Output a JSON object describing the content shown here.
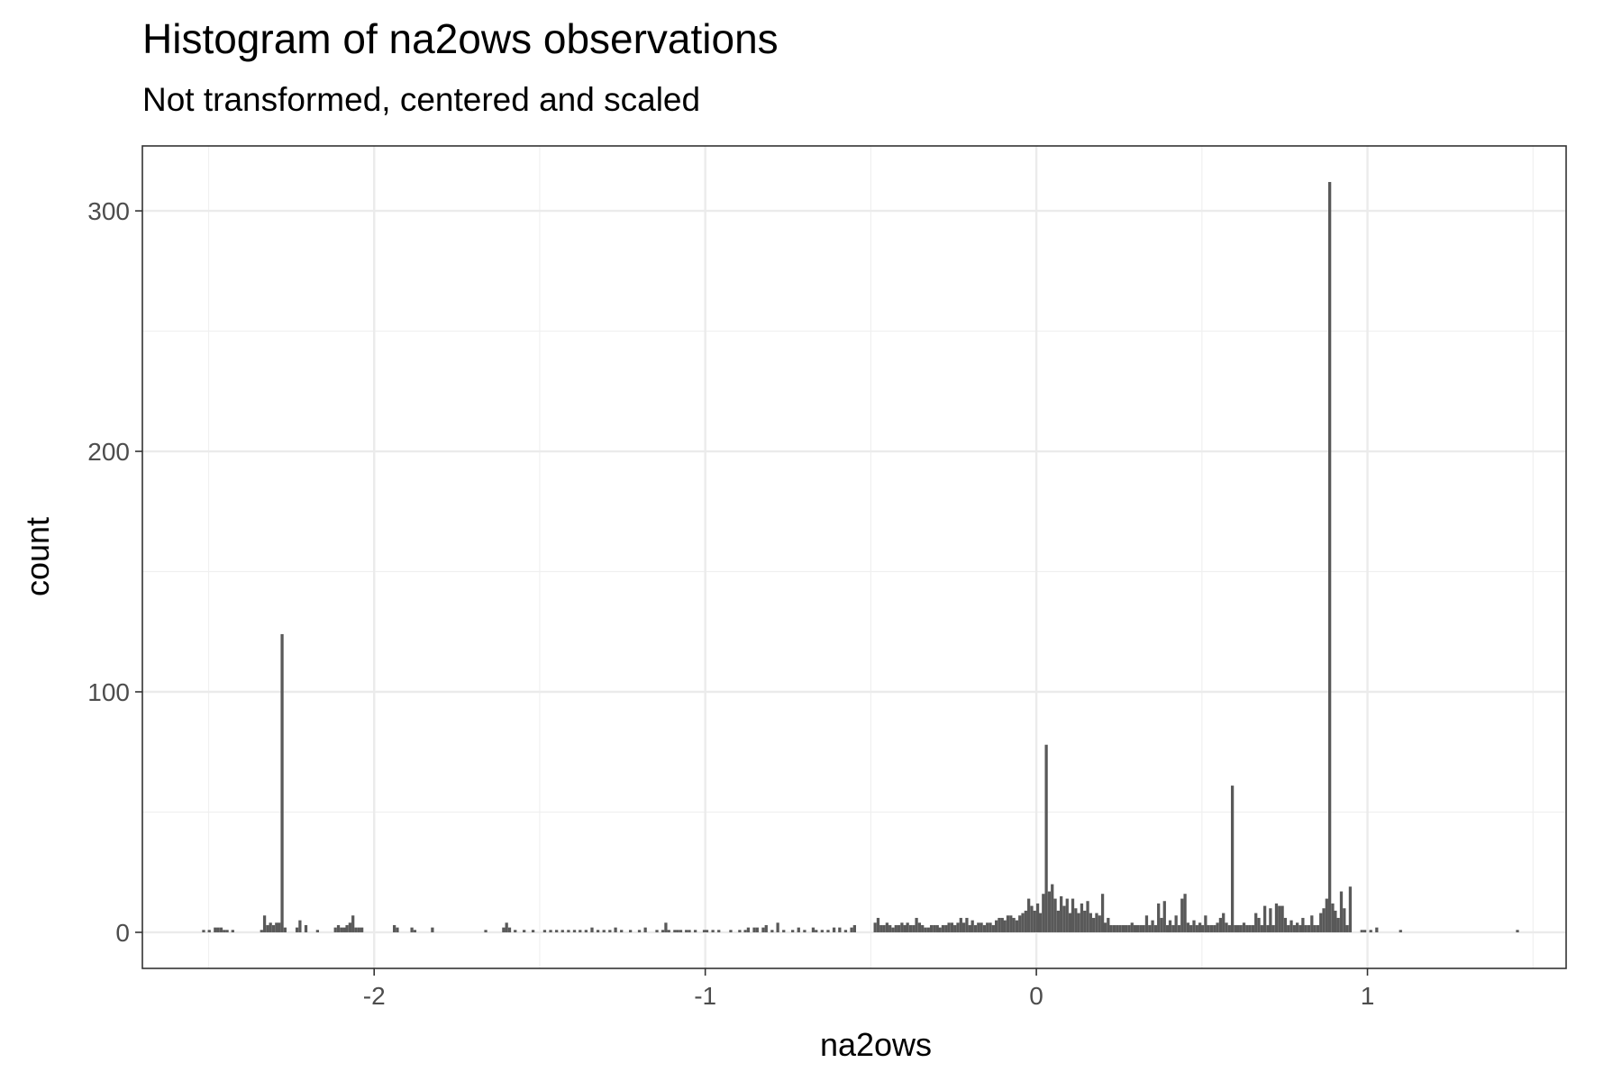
{
  "chart_data": {
    "type": "bar",
    "title": "Histogram of na2ows observations",
    "subtitle": "Not transformed, centered and scaled",
    "xlabel": "na2ows",
    "ylabel": "count",
    "xlim": [
      -2.7,
      1.6
    ],
    "ylim": [
      -15,
      327
    ],
    "x_ticks": [
      -2,
      -1,
      0,
      1
    ],
    "x_tick_labels": [
      "-2",
      "-1",
      "0",
      "1"
    ],
    "y_ticks": [
      0,
      100,
      200,
      300
    ],
    "y_tick_labels": [
      "0",
      "100",
      "200",
      "300"
    ],
    "grid": true,
    "bar_color": "#595959",
    "bin_width": 0.0089,
    "bins": [
      [
        -2.515,
        1
      ],
      [
        -2.498,
        1
      ],
      [
        -2.48,
        2
      ],
      [
        -2.471,
        2
      ],
      [
        -2.462,
        2
      ],
      [
        -2.453,
        1
      ],
      [
        -2.444,
        1
      ],
      [
        -2.427,
        1
      ],
      [
        -2.34,
        1
      ],
      [
        -2.331,
        7
      ],
      [
        -2.322,
        3
      ],
      [
        -2.313,
        4
      ],
      [
        -2.304,
        3
      ],
      [
        -2.295,
        4
      ],
      [
        -2.287,
        4
      ],
      [
        -2.278,
        124
      ],
      [
        -2.269,
        2
      ],
      [
        -2.233,
        2
      ],
      [
        -2.224,
        5
      ],
      [
        -2.206,
        3
      ],
      [
        -2.171,
        1
      ],
      [
        -2.117,
        2
      ],
      [
        -2.108,
        3
      ],
      [
        -2.099,
        2
      ],
      [
        -2.09,
        2
      ],
      [
        -2.082,
        3
      ],
      [
        -2.073,
        4
      ],
      [
        -2.064,
        7
      ],
      [
        -2.055,
        2
      ],
      [
        -2.046,
        2
      ],
      [
        -2.037,
        2
      ],
      [
        -1.939,
        3
      ],
      [
        -1.93,
        2
      ],
      [
        -1.886,
        2
      ],
      [
        -1.877,
        1
      ],
      [
        -1.824,
        2
      ],
      [
        -1.663,
        1
      ],
      [
        -1.609,
        2
      ],
      [
        -1.6,
        4
      ],
      [
        -1.591,
        2
      ],
      [
        -1.574,
        1
      ],
      [
        -1.547,
        1
      ],
      [
        -1.52,
        1
      ],
      [
        -1.485,
        1
      ],
      [
        -1.467,
        1
      ],
      [
        -1.449,
        1
      ],
      [
        -1.431,
        1
      ],
      [
        -1.413,
        1
      ],
      [
        -1.395,
        1
      ],
      [
        -1.378,
        1
      ],
      [
        -1.36,
        1
      ],
      [
        -1.342,
        2
      ],
      [
        -1.324,
        1
      ],
      [
        -1.306,
        1
      ],
      [
        -1.288,
        1
      ],
      [
        -1.271,
        2
      ],
      [
        -1.253,
        1
      ],
      [
        -1.226,
        1
      ],
      [
        -1.199,
        1
      ],
      [
        -1.181,
        2
      ],
      [
        -1.146,
        1
      ],
      [
        -1.128,
        1
      ],
      [
        -1.119,
        4
      ],
      [
        -1.11,
        1
      ],
      [
        -1.092,
        1
      ],
      [
        -1.083,
        1
      ],
      [
        -1.074,
        1
      ],
      [
        -1.057,
        1
      ],
      [
        -1.048,
        1
      ],
      [
        -1.03,
        1
      ],
      [
        -1.003,
        1
      ],
      [
        -0.995,
        1
      ],
      [
        -0.977,
        1
      ],
      [
        -0.959,
        1
      ],
      [
        -0.923,
        1
      ],
      [
        -0.896,
        1
      ],
      [
        -0.879,
        1
      ],
      [
        -0.87,
        2
      ],
      [
        -0.852,
        2
      ],
      [
        -0.843,
        2
      ],
      [
        -0.825,
        2
      ],
      [
        -0.816,
        3
      ],
      [
        -0.798,
        1
      ],
      [
        -0.781,
        4
      ],
      [
        -0.763,
        1
      ],
      [
        -0.736,
        1
      ],
      [
        -0.718,
        2
      ],
      [
        -0.7,
        1
      ],
      [
        -0.674,
        2
      ],
      [
        -0.665,
        1
      ],
      [
        -0.647,
        1
      ],
      [
        -0.629,
        1
      ],
      [
        -0.611,
        2
      ],
      [
        -0.594,
        2
      ],
      [
        -0.576,
        1
      ],
      [
        -0.558,
        2
      ],
      [
        -0.549,
        3
      ],
      [
        -0.487,
        4
      ],
      [
        -0.478,
        6
      ],
      [
        -0.469,
        3
      ],
      [
        -0.46,
        3
      ],
      [
        -0.451,
        4
      ],
      [
        -0.442,
        3
      ],
      [
        -0.433,
        2
      ],
      [
        -0.424,
        3
      ],
      [
        -0.415,
        3
      ],
      [
        -0.406,
        4
      ],
      [
        -0.397,
        3
      ],
      [
        -0.389,
        4
      ],
      [
        -0.38,
        3
      ],
      [
        -0.371,
        3
      ],
      [
        -0.362,
        6
      ],
      [
        -0.353,
        4
      ],
      [
        -0.344,
        3
      ],
      [
        -0.335,
        2
      ],
      [
        -0.326,
        2
      ],
      [
        -0.317,
        3
      ],
      [
        -0.308,
        3
      ],
      [
        -0.299,
        3
      ],
      [
        -0.291,
        2
      ],
      [
        -0.282,
        3
      ],
      [
        -0.273,
        3
      ],
      [
        -0.264,
        4
      ],
      [
        -0.255,
        4
      ],
      [
        -0.246,
        3
      ],
      [
        -0.237,
        4
      ],
      [
        -0.228,
        6
      ],
      [
        -0.219,
        4
      ],
      [
        -0.21,
        6
      ],
      [
        -0.201,
        3
      ],
      [
        -0.193,
        5
      ],
      [
        -0.184,
        3
      ],
      [
        -0.175,
        4
      ],
      [
        -0.166,
        4
      ],
      [
        -0.157,
        3
      ],
      [
        -0.148,
        4
      ],
      [
        -0.139,
        4
      ],
      [
        -0.13,
        3
      ],
      [
        -0.121,
        5
      ],
      [
        -0.112,
        6
      ],
      [
        -0.103,
        6
      ],
      [
        -0.095,
        5
      ],
      [
        -0.086,
        7
      ],
      [
        -0.077,
        7
      ],
      [
        -0.068,
        6
      ],
      [
        -0.059,
        5
      ],
      [
        -0.05,
        7
      ],
      [
        -0.041,
        8
      ],
      [
        -0.032,
        9
      ],
      [
        -0.023,
        14
      ],
      [
        -0.014,
        11
      ],
      [
        -0.005,
        9
      ],
      [
        0.004,
        12
      ],
      [
        0.012,
        8
      ],
      [
        0.021,
        16
      ],
      [
        0.03,
        78
      ],
      [
        0.039,
        17
      ],
      [
        0.048,
        20
      ],
      [
        0.057,
        14
      ],
      [
        0.066,
        9
      ],
      [
        0.075,
        15
      ],
      [
        0.084,
        11
      ],
      [
        0.093,
        14
      ],
      [
        0.102,
        8
      ],
      [
        0.11,
        14
      ],
      [
        0.119,
        10
      ],
      [
        0.128,
        8
      ],
      [
        0.137,
        12
      ],
      [
        0.146,
        9
      ],
      [
        0.155,
        13
      ],
      [
        0.164,
        8
      ],
      [
        0.173,
        6
      ],
      [
        0.182,
        8
      ],
      [
        0.191,
        7
      ],
      [
        0.2,
        16
      ],
      [
        0.208,
        4
      ],
      [
        0.217,
        6
      ],
      [
        0.226,
        3
      ],
      [
        0.235,
        3
      ],
      [
        0.244,
        3
      ],
      [
        0.253,
        3
      ],
      [
        0.262,
        3
      ],
      [
        0.271,
        3
      ],
      [
        0.28,
        3
      ],
      [
        0.289,
        4
      ],
      [
        0.298,
        3
      ],
      [
        0.306,
        3
      ],
      [
        0.315,
        3
      ],
      [
        0.324,
        3
      ],
      [
        0.333,
        7
      ],
      [
        0.342,
        3
      ],
      [
        0.351,
        5
      ],
      [
        0.36,
        3
      ],
      [
        0.369,
        12
      ],
      [
        0.378,
        6
      ],
      [
        0.387,
        13
      ],
      [
        0.396,
        3
      ],
      [
        0.404,
        5
      ],
      [
        0.413,
        3
      ],
      [
        0.422,
        7
      ],
      [
        0.431,
        3
      ],
      [
        0.44,
        14
      ],
      [
        0.449,
        16
      ],
      [
        0.458,
        4
      ],
      [
        0.467,
        3
      ],
      [
        0.476,
        5
      ],
      [
        0.485,
        3
      ],
      [
        0.494,
        4
      ],
      [
        0.502,
        3
      ],
      [
        0.511,
        7
      ],
      [
        0.52,
        3
      ],
      [
        0.529,
        3
      ],
      [
        0.538,
        3
      ],
      [
        0.547,
        4
      ],
      [
        0.556,
        6
      ],
      [
        0.565,
        8
      ],
      [
        0.574,
        4
      ],
      [
        0.583,
        3
      ],
      [
        0.592,
        61
      ],
      [
        0.601,
        3
      ],
      [
        0.609,
        3
      ],
      [
        0.618,
        3
      ],
      [
        0.627,
        4
      ],
      [
        0.636,
        3
      ],
      [
        0.645,
        3
      ],
      [
        0.654,
        3
      ],
      [
        0.663,
        8
      ],
      [
        0.672,
        6
      ],
      [
        0.681,
        3
      ],
      [
        0.69,
        11
      ],
      [
        0.699,
        3
      ],
      [
        0.707,
        10
      ],
      [
        0.716,
        3
      ],
      [
        0.725,
        12
      ],
      [
        0.734,
        11
      ],
      [
        0.743,
        11
      ],
      [
        0.752,
        6
      ],
      [
        0.761,
        3
      ],
      [
        0.77,
        5
      ],
      [
        0.779,
        3
      ],
      [
        0.788,
        4
      ],
      [
        0.797,
        3
      ],
      [
        0.805,
        6
      ],
      [
        0.814,
        3
      ],
      [
        0.823,
        3
      ],
      [
        0.832,
        7
      ],
      [
        0.841,
        3
      ],
      [
        0.85,
        3
      ],
      [
        0.859,
        8
      ],
      [
        0.868,
        10
      ],
      [
        0.877,
        14
      ],
      [
        0.886,
        312
      ],
      [
        0.895,
        12
      ],
      [
        0.903,
        9
      ],
      [
        0.912,
        6
      ],
      [
        0.921,
        17
      ],
      [
        0.93,
        10
      ],
      [
        0.939,
        3
      ],
      [
        0.948,
        19
      ],
      [
        0.983,
        1
      ],
      [
        0.992,
        1
      ],
      [
        1.01,
        1
      ],
      [
        1.028,
        2
      ],
      [
        1.1,
        1
      ],
      [
        1.453,
        1
      ]
    ]
  }
}
